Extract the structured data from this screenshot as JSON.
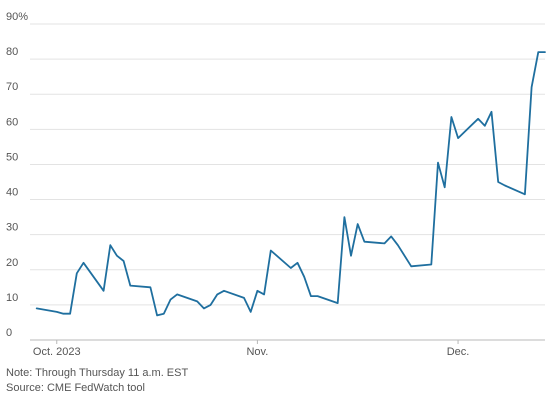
{
  "chart_data": {
    "type": "line",
    "title": "",
    "xlabel": "",
    "ylabel": "",
    "ylim": [
      0,
      90
    ],
    "yticks": [
      0,
      10,
      20,
      30,
      40,
      50,
      60,
      70,
      80,
      90
    ],
    "ytick_labels": [
      "0",
      "10",
      "20",
      "30",
      "40",
      "50",
      "60",
      "70",
      "80",
      "90%"
    ],
    "xlim": [
      "2023-09-28",
      "2023-12-14"
    ],
    "xticks": [
      {
        "date": "2023-10-02",
        "label": "Oct. 2023"
      },
      {
        "date": "2023-11-01",
        "label": "Nov."
      },
      {
        "date": "2023-12-01",
        "label": "Dec."
      }
    ],
    "grid": true,
    "series": [
      {
        "color": "#1f6f9f",
        "x": [
          "2023-09-29",
          "2023-10-02",
          "2023-10-03",
          "2023-10-04",
          "2023-10-05",
          "2023-10-06",
          "2023-10-09",
          "2023-10-10",
          "2023-10-11",
          "2023-10-12",
          "2023-10-13",
          "2023-10-16",
          "2023-10-17",
          "2023-10-18",
          "2023-10-19",
          "2023-10-20",
          "2023-10-23",
          "2023-10-24",
          "2023-10-25",
          "2023-10-26",
          "2023-10-27",
          "2023-10-30",
          "2023-10-31",
          "2023-11-01",
          "2023-11-02",
          "2023-11-03",
          "2023-11-06",
          "2023-11-07",
          "2023-11-08",
          "2023-11-09",
          "2023-11-10",
          "2023-11-13",
          "2023-11-14",
          "2023-11-15",
          "2023-11-16",
          "2023-11-17",
          "2023-11-20",
          "2023-11-21",
          "2023-11-22",
          "2023-11-24",
          "2023-11-27",
          "2023-11-28",
          "2023-11-29",
          "2023-11-30",
          "2023-12-01",
          "2023-12-04",
          "2023-12-05",
          "2023-12-06",
          "2023-12-07",
          "2023-12-08",
          "2023-12-11",
          "2023-12-12",
          "2023-12-13",
          "2023-12-14"
        ],
        "y": [
          9,
          8,
          7.5,
          7.5,
          19,
          22,
          14,
          27,
          24,
          22.5,
          15.5,
          15,
          7,
          7.5,
          11.5,
          13,
          11,
          9,
          10,
          13,
          14,
          12,
          8,
          14,
          13,
          25.5,
          20.5,
          22,
          18,
          12.5,
          12.5,
          10.5,
          35,
          24,
          33,
          28,
          27.5,
          29.5,
          27,
          21,
          21.5,
          50.5,
          43.5,
          63.5,
          57.5,
          63,
          61,
          65,
          45,
          44,
          41.5,
          72,
          82,
          82
        ]
      }
    ]
  },
  "footnotes": {
    "note": "Note: Through Thursday 11 a.m. EST",
    "source": "Source: CME FedWatch tool"
  }
}
